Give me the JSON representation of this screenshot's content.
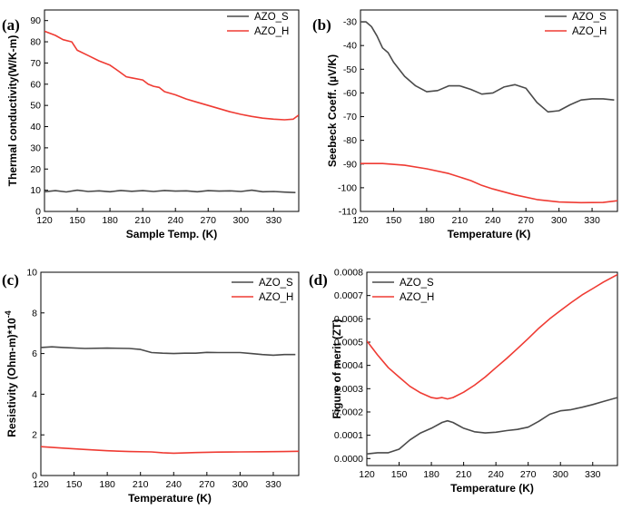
{
  "colors": {
    "AZO_S": "#4a4a4a",
    "AZO_H": "#ef3b33"
  },
  "chart_data": [
    {
      "panel": "(a)",
      "type": "line",
      "xlabel": "Sample Temp. (K)",
      "ylabel": "Thermal conductivity(W/K-m)",
      "xlim": [
        120,
        353
      ],
      "ylim": [
        0,
        95
      ],
      "xticks": [
        "120",
        "150",
        "180",
        "210",
        "240",
        "270",
        "300",
        "330"
      ],
      "yticks": [
        "0",
        "10",
        "20",
        "30",
        "40",
        "50",
        "60",
        "70",
        "80",
        "90"
      ],
      "legend_position": "top-right",
      "series": [
        {
          "name": "AZO_S",
          "x": [
            120,
            130,
            140,
            150,
            160,
            170,
            180,
            190,
            200,
            210,
            220,
            230,
            240,
            250,
            260,
            270,
            280,
            290,
            300,
            310,
            320,
            330,
            340,
            350
          ],
          "y": [
            9.3,
            9.8,
            9.2,
            10.0,
            9.4,
            9.7,
            9.3,
            9.9,
            9.5,
            9.8,
            9.4,
            9.9,
            9.6,
            9.7,
            9.3,
            9.8,
            9.6,
            9.7,
            9.4,
            10.0,
            9.3,
            9.4,
            9.1,
            8.9
          ]
        },
        {
          "name": "AZO_H",
          "x": [
            120,
            130,
            137,
            145,
            150,
            160,
            170,
            180,
            187,
            195,
            200,
            210,
            215,
            220,
            225,
            230,
            240,
            250,
            260,
            270,
            280,
            290,
            300,
            310,
            320,
            330,
            340,
            348,
            353
          ],
          "y": [
            85,
            83,
            81,
            80,
            76,
            73.5,
            71,
            69,
            66.5,
            63.5,
            63,
            62,
            60,
            59,
            58.5,
            56.5,
            55,
            53,
            51.5,
            50,
            48.5,
            47,
            45.8,
            44.8,
            44,
            43.5,
            43.2,
            43.5,
            45.5
          ]
        }
      ]
    },
    {
      "panel": "(b)",
      "type": "line",
      "xlabel": "Temperature (K)",
      "ylabel": "Seebeck Coeff. (µV/K)",
      "xlim": [
        120,
        353
      ],
      "ylim": [
        -110,
        -25
      ],
      "xticks": [
        "120",
        "150",
        "180",
        "210",
        "240",
        "270",
        "300",
        "330"
      ],
      "yticks": [
        "-30",
        "-40",
        "-50",
        "-60",
        "-70",
        "-80",
        "-90",
        "-100",
        "-110"
      ],
      "legend_position": "top-right",
      "series": [
        {
          "name": "AZO_S",
          "x": [
            120,
            125,
            130,
            135,
            140,
            145,
            150,
            160,
            170,
            180,
            190,
            200,
            210,
            220,
            230,
            240,
            250,
            260,
            270,
            280,
            290,
            300,
            310,
            320,
            330,
            340,
            350
          ],
          "y": [
            -30,
            -30,
            -32,
            -36,
            -41,
            -43,
            -47,
            -53,
            -57,
            -59.5,
            -59,
            -57,
            -57,
            -58.5,
            -60.5,
            -60,
            -57.5,
            -56.5,
            -58,
            -64,
            -68,
            -67.5,
            -65,
            -63,
            -62.5,
            -62.5,
            -63
          ]
        },
        {
          "name": "AZO_H",
          "x": [
            120,
            140,
            160,
            180,
            200,
            220,
            230,
            240,
            260,
            280,
            300,
            320,
            340,
            353
          ],
          "y": [
            -89.8,
            -89.8,
            -90.5,
            -92,
            -94,
            -97,
            -99,
            -100.5,
            -103,
            -105,
            -106,
            -106.3,
            -106.2,
            -105.5
          ]
        }
      ]
    },
    {
      "panel": "(c)",
      "type": "line",
      "xlabel": "Temperature (K)",
      "ylabel": "Resistivity (Ohm-m)*10",
      "ylabel_sup": "-4",
      "xlim": [
        120,
        353
      ],
      "ylim": [
        0,
        10
      ],
      "xticks": [
        "120",
        "150",
        "180",
        "210",
        "240",
        "270",
        "300",
        "330"
      ],
      "yticks": [
        "0",
        "2",
        "4",
        "6",
        "8",
        "10"
      ],
      "legend_position": "top-right",
      "series": [
        {
          "name": "AZO_S",
          "x": [
            120,
            130,
            140,
            160,
            180,
            200,
            210,
            220,
            230,
            240,
            250,
            260,
            270,
            280,
            290,
            300,
            310,
            320,
            330,
            340,
            350
          ],
          "y": [
            6.3,
            6.33,
            6.3,
            6.25,
            6.27,
            6.25,
            6.2,
            6.05,
            6.02,
            6.0,
            6.02,
            6.02,
            6.06,
            6.05,
            6.05,
            6.05,
            6.0,
            5.95,
            5.92,
            5.95,
            5.95
          ]
        },
        {
          "name": "AZO_H",
          "x": [
            120,
            140,
            160,
            180,
            200,
            220,
            230,
            240,
            260,
            280,
            300,
            320,
            340,
            353
          ],
          "y": [
            1.42,
            1.35,
            1.28,
            1.22,
            1.18,
            1.16,
            1.12,
            1.1,
            1.13,
            1.15,
            1.16,
            1.17,
            1.18,
            1.19
          ]
        }
      ]
    },
    {
      "panel": "(d)",
      "type": "line",
      "xlabel": "Temperature (K)",
      "ylabel": "Figure of merit (ZT)",
      "xlim": [
        120,
        353
      ],
      "ylim": [
        -3e-05,
        0.0008
      ],
      "xticks": [
        "120",
        "150",
        "180",
        "210",
        "240",
        "270",
        "300",
        "330"
      ],
      "yticks": [
        "0.0000",
        "0.0001",
        "0.0002",
        "0.0003",
        "0.0004",
        "0.0005",
        "0.0006",
        "0.0007",
        "0.0008"
      ],
      "legend_position": "top-left",
      "series": [
        {
          "name": "AZO_S",
          "x": [
            120,
            130,
            140,
            150,
            160,
            170,
            180,
            190,
            195,
            200,
            210,
            220,
            230,
            240,
            250,
            260,
            270,
            280,
            290,
            300,
            310,
            320,
            330,
            340,
            353
          ],
          "y": [
            2e-05,
            2.5e-05,
            2.5e-05,
            4e-05,
            8e-05,
            0.00011,
            0.00013,
            0.000155,
            0.000162,
            0.000155,
            0.00013,
            0.000115,
            0.00011,
            0.000113,
            0.00012,
            0.000125,
            0.000135,
            0.00016,
            0.00019,
            0.000205,
            0.00021,
            0.00022,
            0.000232,
            0.000245,
            0.000262
          ]
        },
        {
          "name": "AZO_H",
          "x": [
            120,
            130,
            140,
            150,
            160,
            170,
            180,
            185,
            190,
            195,
            200,
            210,
            220,
            230,
            240,
            250,
            260,
            270,
            280,
            290,
            300,
            310,
            320,
            330,
            340,
            353
          ],
          "y": [
            0.000505,
            0.000445,
            0.00039,
            0.00035,
            0.00031,
            0.000282,
            0.000262,
            0.000258,
            0.000262,
            0.000256,
            0.000262,
            0.000285,
            0.000315,
            0.00035,
            0.00039,
            0.00043,
            0.000472,
            0.000515,
            0.00056,
            0.0006,
            0.000635,
            0.00067,
            0.000702,
            0.00073,
            0.000758,
            0.00079
          ]
        }
      ]
    }
  ]
}
